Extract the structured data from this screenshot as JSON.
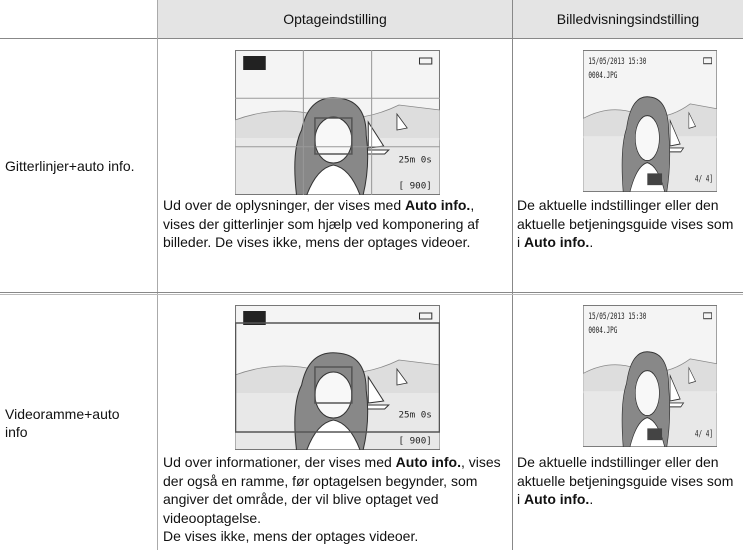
{
  "table": {
    "header": [
      "Optageindstilling",
      "Billedvisningsindstilling"
    ],
    "rows": [
      {
        "label": "Gitterlinjer+auto info.",
        "shooting": {
          "screen": {
            "remaining": "25m 0s",
            "exposures": "[ 900]"
          },
          "before": "Ud over de oplysninger, der vises med ",
          "bold": "Auto info.",
          "after": ", vises der gitterlinjer som hjælp ved komponering af billeder. De vises ikke, mens der optages videoer."
        },
        "playback": {
          "screen": {
            "date": "15/05/2013 15:30",
            "file": "0004.JPG",
            "counter": "4/ 4]"
          },
          "before": "De aktuelle indstillinger eller den aktuelle betjeningsguide vises som i ",
          "bold": "Auto info.",
          "after": "."
        }
      },
      {
        "label": "Videoramme+auto info",
        "shooting": {
          "screen": {
            "remaining": "25m 0s",
            "exposures": "[ 900]"
          },
          "before": "Ud over informationer, der vises med ",
          "bold": "Auto info.",
          "after": ", vises der også en ramme, før optagelsen begynder, som angiver det område, der vil blive optaget ved videooptagelse.",
          "note": "De vises ikke, mens der optages videoer."
        },
        "playback": {
          "screen": {
            "date": "15/05/2013 15:30",
            "file": "0004.JPG",
            "counter": "4/ 4]"
          },
          "before": "De aktuelle indstillinger eller den aktuelle betjeningsguide vises som i ",
          "bold": "Auto info.",
          "after": "."
        }
      }
    ]
  }
}
